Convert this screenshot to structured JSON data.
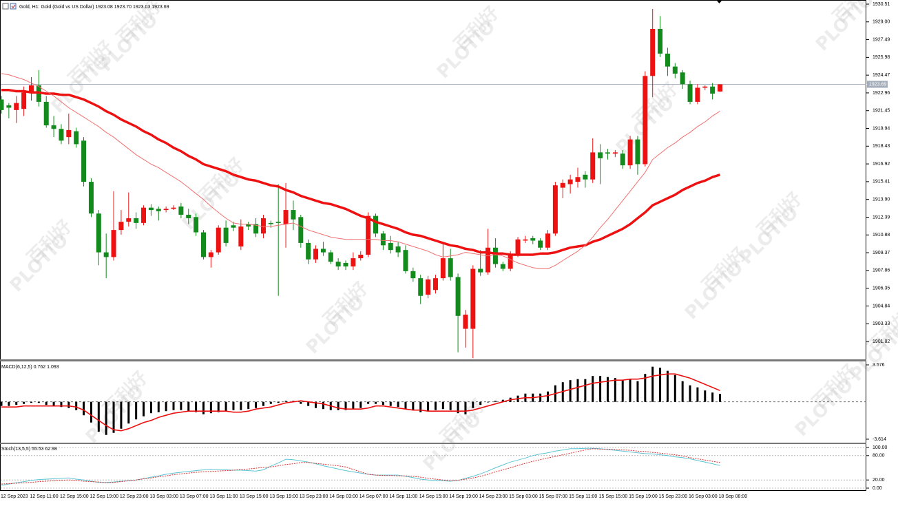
{
  "watermark": {
    "brand": "PLOTIO",
    "chinese": "百利好"
  },
  "chart_data": [
    {
      "type": "candlestick",
      "title": "Gold, H1:  Gold (Gold vs US Dollar)  1923.08 1923.70 1923.03 1923.69",
      "categories": [
        "12 Sep 2023",
        null,
        null,
        null,
        "12 Sep 11:00",
        null,
        null,
        null,
        "12 Sep 15:00",
        null,
        null,
        null,
        "12 Sep 19:00",
        null,
        null,
        null,
        "12 Sep 23:00",
        null,
        null,
        null,
        "13 Sep 03:00",
        null,
        null,
        null,
        "13 Sep 07:00",
        null,
        null,
        null,
        "13 Sep 11:00",
        null,
        null,
        null,
        "13 Sep 15:00",
        null,
        null,
        null,
        "13 Sep 19:00",
        null,
        null,
        null,
        "13 Sep 23:00",
        null,
        null,
        null,
        "14 Sep 03:00",
        null,
        null,
        null,
        "14 Sep 07:00",
        null,
        null,
        null,
        "14 Sep 11:00",
        null,
        null,
        null,
        "14 Sep 15:00",
        null,
        null,
        null,
        "14 Sep 19:00",
        null,
        null,
        null,
        "14 Sep 23:00",
        null,
        null,
        null,
        "15 Sep 03:00",
        null,
        null,
        null,
        "15 Sep 07:00",
        null,
        null,
        null,
        "15 Sep 11:00",
        null,
        null,
        null,
        "15 Sep 15:00",
        null,
        null,
        null,
        "15 Sep 19:00",
        null,
        null,
        null,
        "15 Sep 23:00",
        null,
        null,
        null,
        "16 Sep 03:00",
        null,
        null,
        null,
        "18 Sep 08:00"
      ],
      "open": [
        1922.4,
        1921.9,
        1921.5,
        1921.6,
        1923.0,
        1923.6,
        1922.2,
        1920.2,
        1919.9,
        1919.2,
        1919.7,
        1918.9,
        1915.4,
        1912.7,
        1909.4,
        1909.0,
        1911.3,
        1912.0,
        1912.3,
        1911.9,
        1913.2,
        1913.1,
        1913.0,
        1913.1,
        1913.3,
        1912.6,
        1912.4,
        1911.1,
        1909.0,
        1909.4,
        1911.5,
        1911.7,
        1909.9,
        1911.8,
        1911.8,
        1911.0,
        1911.9,
        1912.0,
        1911.8,
        1913.0,
        1912.4,
        1910.2,
        1908.8,
        1909.7,
        1909.4,
        1908.6,
        1908.5,
        1908.2,
        1908.9,
        1909.2,
        1912.5,
        1911.0,
        1910.2,
        1909.9,
        1909.6,
        1907.8,
        1907.2,
        1905.8,
        1906.2,
        1907.2,
        1908.9,
        1907.3,
        1902.9,
        1902.9,
        1908.0,
        1907.7,
        1909.8,
        1908.4,
        1908.0,
        1909.2,
        1910.4,
        1910.6,
        1910.4,
        1909.8,
        1911.0,
        1914.9,
        1915.2,
        1915.4,
        1916.0,
        1915.6,
        1917.9,
        1917.9,
        1917.8,
        1917.8,
        1916.8,
        1919.0,
        1916.9,
        1924.4,
        1928.4,
        1926.3,
        1925.2,
        1924.7,
        1923.7,
        1922.2,
        1923.4,
        1923.5,
        1923.08
      ],
      "high": [
        1922.7,
        1922.1,
        1922.7,
        1923.5,
        1924.3,
        1924.9,
        1922.7,
        1921.0,
        1920.3,
        1921.2,
        1920.0,
        1919.2,
        1915.7,
        1913.0,
        1911.0,
        1914.6,
        1913.0,
        1914.5,
        1912.8,
        1913.4,
        1913.5,
        1913.3,
        1913.3,
        1913.4,
        1913.6,
        1913.1,
        1912.7,
        1911.3,
        1909.6,
        1911.7,
        1912.1,
        1912.0,
        1912.2,
        1912.0,
        1912.3,
        1912.6,
        1912.1,
        1915.2,
        1915.3,
        1913.8,
        1912.6,
        1910.5,
        1910.0,
        1910.3,
        1909.6,
        1908.9,
        1908.7,
        1909.4,
        1909.5,
        1912.8,
        1912.7,
        1911.2,
        1910.8,
        1910.3,
        1910.0,
        1908.1,
        1907.5,
        1907.4,
        1907.5,
        1910.2,
        1909.7,
        1907.6,
        1904.5,
        1908.3,
        1909.6,
        1911.4,
        1910.6,
        1908.6,
        1909.5,
        1910.7,
        1910.8,
        1910.8,
        1910.6,
        1911.3,
        1915.4,
        1915.6,
        1916.0,
        1916.6,
        1916.3,
        1919.1,
        1918.6,
        1918.2,
        1918.1,
        1918.1,
        1919.3,
        1919.3,
        1924.8,
        1930.1,
        1929.5,
        1926.8,
        1925.5,
        1924.9,
        1924.0,
        1923.7,
        1923.6,
        1923.8,
        1923.7
      ],
      "low": [
        1921.2,
        1920.8,
        1920.4,
        1921.0,
        1922.3,
        1921.8,
        1920.0,
        1919.2,
        1918.6,
        1918.6,
        1918.3,
        1915.0,
        1912.4,
        1908.3,
        1907.2,
        1908.7,
        1910.9,
        1911.6,
        1911.4,
        1911.7,
        1912.5,
        1912.1,
        1912.8,
        1913.0,
        1912.3,
        1911.8,
        1910.8,
        1908.8,
        1908.1,
        1909.2,
        1909.9,
        1911.2,
        1909.6,
        1911.3,
        1910.7,
        1910.6,
        1911.5,
        1905.7,
        1909.8,
        1911.3,
        1909.8,
        1908.4,
        1908.5,
        1909.1,
        1908.4,
        1907.9,
        1907.9,
        1907.9,
        1908.7,
        1909.0,
        1910.7,
        1909.6,
        1909.3,
        1909.0,
        1907.6,
        1906.9,
        1905.0,
        1905.5,
        1905.9,
        1907.0,
        1907.0,
        1900.9,
        1901.3,
        1900.4,
        1907.4,
        1907.5,
        1908.1,
        1907.8,
        1907.8,
        1909.0,
        1910.2,
        1910.1,
        1909.6,
        1909.6,
        1910.8,
        1914.0,
        1914.4,
        1914.9,
        1914.9,
        1915.3,
        1915.2,
        1917.3,
        1917.5,
        1916.5,
        1916.5,
        1916.0,
        1916.7,
        1922.6,
        1926.0,
        1924.4,
        1924.2,
        1923.3,
        1922.0,
        1922.0,
        1923.2,
        1922.4,
        1923.03
      ],
      "close": [
        1921.5,
        1921.7,
        1922.1,
        1923.0,
        1923.6,
        1922.2,
        1920.2,
        1919.9,
        1918.9,
        1919.8,
        1918.6,
        1915.4,
        1912.7,
        1909.4,
        1909.0,
        1911.3,
        1912.0,
        1912.3,
        1911.9,
        1913.2,
        1913.0,
        1912.9,
        1913.1,
        1913.2,
        1912.6,
        1912.3,
        1911.1,
        1909.0,
        1909.4,
        1911.5,
        1910.2,
        1911.5,
        1911.6,
        1911.6,
        1911.0,
        1912.3,
        1911.8,
        1911.9,
        1913.0,
        1912.2,
        1910.2,
        1908.8,
        1909.7,
        1909.4,
        1908.6,
        1908.2,
        1908.2,
        1908.9,
        1909.2,
        1912.5,
        1911.0,
        1910.0,
        1909.6,
        1909.4,
        1907.8,
        1907.2,
        1905.7,
        1907.1,
        1907.2,
        1908.9,
        1907.3,
        1904.0,
        1904.1,
        1908.0,
        1907.7,
        1909.8,
        1908.4,
        1908.0,
        1909.2,
        1910.5,
        1910.5,
        1910.4,
        1909.8,
        1911.0,
        1915.1,
        1915.3,
        1915.6,
        1915.8,
        1915.6,
        1917.9,
        1917.4,
        1917.8,
        1917.9,
        1916.8,
        1919.0,
        1916.9,
        1924.4,
        1928.4,
        1926.3,
        1925.2,
        1924.6,
        1923.7,
        1922.2,
        1923.4,
        1923.5,
        1922.9,
        1923.69
      ],
      "up_color": "#ee1111",
      "down_color": "#128a1c",
      "series": [
        {
          "color": "#ee1111",
          "width": 3.5,
          "values": [
            1923.2,
            1923.2,
            1923.1,
            1923.1,
            1923.0,
            1923.0,
            1922.9,
            1922.9,
            1922.8,
            1922.8,
            1922.6,
            1922.4,
            1922.1,
            1921.8,
            1921.4,
            1921.1,
            1920.7,
            1920.4,
            1920.1,
            1919.7,
            1919.4,
            1919.0,
            1918.7,
            1918.3,
            1918.0,
            1917.6,
            1917.3,
            1916.9,
            1916.7,
            1916.5,
            1916.3,
            1916.0,
            1915.8,
            1915.6,
            1915.5,
            1915.3,
            1915.1,
            1915.0,
            1914.7,
            1914.5,
            1914.2,
            1914.0,
            1913.8,
            1913.6,
            1913.5,
            1913.3,
            1913.1,
            1912.8,
            1912.5,
            1912.3,
            1912.0,
            1911.8,
            1911.6,
            1911.4,
            1911.1,
            1910.9,
            1910.8,
            1910.6,
            1910.4,
            1910.2,
            1910.0,
            1909.9,
            1909.7,
            1909.6,
            1909.4,
            1909.4,
            1909.3,
            1909.3,
            1909.2,
            1909.2,
            1909.2,
            1909.2,
            1909.3,
            1909.3,
            1909.4,
            1909.6,
            1909.8,
            1909.9,
            1910.0,
            1910.3,
            1910.5,
            1910.8,
            1911.1,
            1911.4,
            1911.8,
            1912.3,
            1912.8,
            1913.4,
            1913.7,
            1914.0,
            1914.3,
            1914.7,
            1915.0,
            1915.3,
            1915.5,
            1915.8,
            1916.0
          ]
        },
        {
          "color": "#f07070",
          "width": 1,
          "values": [
            1924.6,
            1924.5,
            1924.3,
            1924.1,
            1923.8,
            1923.5,
            1923.1,
            1922.7,
            1922.2,
            1921.7,
            1921.3,
            1920.9,
            1920.5,
            1920.1,
            1919.6,
            1919.2,
            1918.7,
            1918.2,
            1917.7,
            1917.3,
            1916.9,
            1916.6,
            1916.2,
            1915.8,
            1915.4,
            1914.9,
            1914.4,
            1913.9,
            1913.3,
            1912.8,
            1912.3,
            1911.9,
            1911.8,
            1911.8,
            1911.7,
            1911.6,
            1911.6,
            1911.7,
            1911.8,
            1911.9,
            1911.6,
            1911.3,
            1911.1,
            1910.9,
            1910.7,
            1910.6,
            1910.5,
            1910.5,
            1910.5,
            1910.5,
            1910.5,
            1910.4,
            1910.4,
            1910.3,
            1910.1,
            1909.9,
            1909.7,
            1909.5,
            1909.2,
            1909.0,
            1909.1,
            1909.2,
            1909.4,
            1909.3,
            1909.2,
            1909.1,
            1909.2,
            1909.1,
            1908.8,
            1908.5,
            1908.3,
            1908.1,
            1908.0,
            1908.0,
            1908.3,
            1908.7,
            1909.1,
            1909.5,
            1910.0,
            1910.7,
            1911.5,
            1912.2,
            1913.0,
            1913.8,
            1914.6,
            1915.4,
            1916.2,
            1917.3,
            1917.8,
            1918.3,
            1918.7,
            1919.2,
            1919.6,
            1920.1,
            1920.5,
            1921.0,
            1921.4
          ]
        }
      ],
      "last_price": 1923.69,
      "ylim": [
        1900.3,
        1930.86
      ],
      "yticks": [
        1930.51,
        {
          "value": 1929.0,
          "label": "1929.00"
        },
        1927.49,
        1925.98,
        1924.47,
        1922.96,
        1921.45,
        1919.94,
        1918.43,
        1916.92,
        1915.41,
        {
          "value": 1913.9,
          "label": "1913.90"
        },
        1912.39,
        1910.88,
        1909.37,
        1907.86,
        1906.35,
        1904.84,
        1903.33,
        1901.82
      ]
    },
    {
      "type": "macd",
      "title": "MACD(6,12,5) 0.762 1.093",
      "color": "#000000",
      "values": [
        -0.4,
        -0.4,
        -0.3,
        -0.2,
        -0.1,
        -0.1,
        -0.3,
        -0.4,
        -0.5,
        -0.6,
        -0.8,
        -1.3,
        -2.0,
        -2.9,
        -3.2,
        -3.0,
        -2.6,
        -2.1,
        -1.7,
        -1.4,
        -1.1,
        -1.0,
        -0.9,
        -0.8,
        -0.8,
        -0.9,
        -1.0,
        -1.2,
        -1.1,
        -1.0,
        -0.9,
        -0.8,
        -0.8,
        -0.7,
        -0.6,
        -0.4,
        -0.2,
        -0.1,
        0.1,
        0.1,
        -0.2,
        -0.4,
        -0.6,
        -0.7,
        -0.8,
        -0.8,
        -0.8,
        -0.7,
        -0.6,
        -0.2,
        -0.2,
        -0.3,
        -0.4,
        -0.5,
        -0.7,
        -0.8,
        -1.0,
        -0.9,
        -0.8,
        -0.7,
        -0.8,
        -1.1,
        -1.2,
        -0.6,
        -0.3,
        0.0,
        0.1,
        0.2,
        0.4,
        0.6,
        0.8,
        0.8,
        0.8,
        1.0,
        1.6,
        1.9,
        2.1,
        2.2,
        2.2,
        2.5,
        2.5,
        2.4,
        2.3,
        2.1,
        2.2,
        2.0,
        2.7,
        3.4,
        3.3,
        3.0,
        2.6,
        2.0,
        1.6,
        1.4,
        1.1,
        0.9,
        0.762
      ],
      "signal": {
        "color": "#ee1111",
        "values": [
          -0.5,
          -0.5,
          -0.5,
          -0.4,
          -0.4,
          -0.4,
          -0.4,
          -0.4,
          -0.4,
          -0.4,
          -0.5,
          -0.8,
          -1.3,
          -1.8,
          -2.3,
          -2.7,
          -2.8,
          -2.6,
          -2.3,
          -2.0,
          -1.8,
          -1.5,
          -1.3,
          -1.1,
          -1.0,
          -0.9,
          -0.9,
          -0.9,
          -0.9,
          -0.9,
          -0.9,
          -1.0,
          -1.0,
          -0.9,
          -0.7,
          -0.6,
          -0.5,
          -0.3,
          -0.1,
          0.0,
          0.1,
          0.0,
          -0.1,
          -0.2,
          -0.4,
          -0.6,
          -0.7,
          -0.7,
          -0.7,
          -0.6,
          -0.4,
          -0.4,
          -0.5,
          -0.6,
          -0.7,
          -0.8,
          -0.8,
          -0.9,
          -0.9,
          -0.9,
          -0.9,
          -0.9,
          -0.9,
          -0.8,
          -0.6,
          -0.4,
          -0.2,
          0.0,
          0.2,
          0.3,
          0.4,
          0.4,
          0.5,
          0.6,
          0.8,
          1.0,
          1.2,
          1.4,
          1.6,
          1.8,
          1.9,
          2.0,
          2.1,
          2.1,
          2.2,
          2.2,
          2.3,
          2.5,
          2.6,
          2.7,
          2.7,
          2.5,
          2.3,
          2.0,
          1.7,
          1.4,
          1.093
        ]
      },
      "ylim": [
        -3.95,
        3.91
      ],
      "yticks": [
        3.576,
        -3.614
      ]
    },
    {
      "type": "stochastic",
      "title": "Stoch(13,5,5) 55.53 62.98",
      "grid": true,
      "series": [
        {
          "color": "#5bc4d4",
          "values": [
            7,
            10,
            13,
            16,
            19,
            21,
            22,
            23,
            24,
            25,
            22,
            20,
            17,
            14,
            14,
            15,
            17,
            18,
            20,
            23,
            27,
            30,
            34,
            37,
            39,
            41,
            43,
            45,
            46,
            45,
            45,
            44,
            44,
            43,
            42,
            45,
            54,
            62,
            71,
            70,
            67,
            64,
            60,
            55,
            51,
            47,
            43,
            40,
            37,
            34,
            32,
            32,
            32,
            32,
            29,
            26,
            22,
            20,
            19,
            18,
            17,
            19,
            24,
            29,
            35,
            42,
            50,
            57,
            64,
            69,
            74,
            80,
            84,
            87,
            91,
            94,
            97,
            97,
            98,
            98,
            97,
            95,
            93,
            91,
            89,
            87,
            85,
            84,
            82,
            80,
            77,
            75,
            72,
            68,
            64,
            60,
            55.53
          ]
        },
        {
          "color": "#e03030",
          "dash": true,
          "values": [
            10,
            11,
            12,
            13,
            14,
            16,
            17,
            18,
            19,
            20,
            19,
            17,
            16,
            15,
            13,
            14,
            16,
            18,
            20,
            23,
            25,
            28,
            30,
            33,
            35,
            37,
            39,
            40,
            41,
            42,
            43,
            44,
            46,
            47,
            49,
            51,
            52,
            55,
            58,
            60,
            63,
            63,
            61,
            59,
            57,
            55,
            52,
            46,
            40,
            34,
            32,
            31,
            31,
            30,
            30,
            29,
            27,
            24,
            22,
            20,
            18,
            19,
            22,
            25,
            29,
            34,
            40,
            45,
            50,
            56,
            61,
            66,
            70,
            74,
            78,
            82,
            86,
            90,
            94,
            97,
            96,
            96,
            95,
            94,
            93,
            91,
            90,
            88,
            86,
            84,
            82,
            79,
            75,
            72,
            69,
            66,
            62.98
          ]
        }
      ],
      "ylim": [
        -6.8,
        108.5
      ],
      "yticks": [
        {
          "value": 100,
          "label": "100.00"
        },
        {
          "value": 80,
          "label": "80.00"
        },
        {
          "value": 20,
          "label": "20.00"
        },
        {
          "value": 0,
          "label": "0.00"
        }
      ]
    }
  ]
}
